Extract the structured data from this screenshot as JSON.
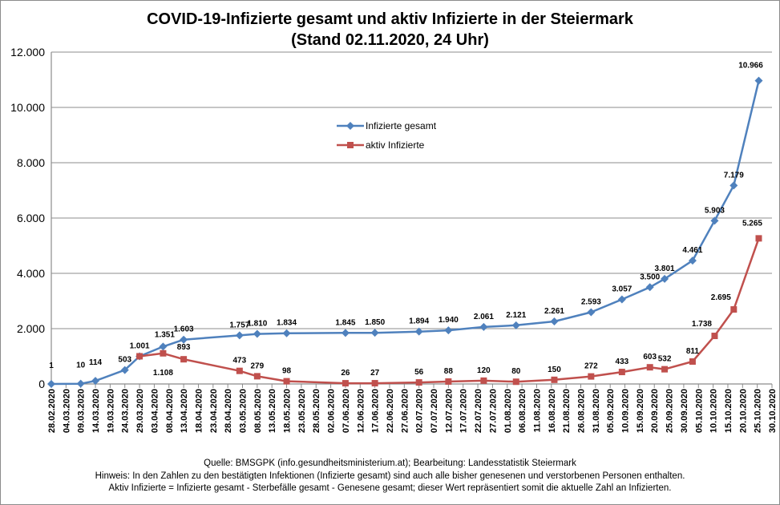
{
  "title_line1": "COVID-19-Infizierte gesamt und aktiv Infizierte in der Steiermark",
  "title_line2": "(Stand 02.11.2020, 24 Uhr)",
  "footnotes": [
    "Quelle: BMSGPK (info.gesundheitsministerium.at); Bearbeitung: Landesstatistik Steiermark",
    "Hinweis: In den Zahlen zu den bestätigten Infektionen (Infizierte gesamt) sind auch alle bisher genesenen und verstorbenen Personen enthalten.",
    "Aktiv Infizierte = Infizierte gesamt - Sterbefälle gesamt - Genesene gesamt; dieser Wert repräsentiert somit die aktuelle Zahl an Infizierten."
  ],
  "colors": {
    "series1": "#4F81BD",
    "series2": "#C0504D",
    "grid": "#8c8c8c"
  },
  "chart_data": {
    "type": "line",
    "ylim": [
      0,
      12000
    ],
    "yticks": [
      "0",
      "2.000",
      "4.000",
      "6.000",
      "8.000",
      "10.000",
      "12.000"
    ],
    "ytick_values": [
      0,
      2000,
      4000,
      6000,
      8000,
      10000,
      12000
    ],
    "categories": [
      "28.02.2020",
      "04.03.2020",
      "09.03.2020",
      "14.03.2020",
      "19.03.2020",
      "24.03.2020",
      "29.03.2020",
      "03.04.2020",
      "08.04.2020",
      "13.04.2020",
      "18.04.2020",
      "23.04.2020",
      "28.04.2020",
      "03.05.2020",
      "08.05.2020",
      "13.05.2020",
      "18.05.2020",
      "23.05.2020",
      "28.05.2020",
      "02.06.2020",
      "07.06.2020",
      "12.06.2020",
      "17.06.2020",
      "22.06.2020",
      "27.06.2020",
      "02.07.2020",
      "07.07.2020",
      "12.07.2020",
      "17.07.2020",
      "22.07.2020",
      "27.07.2020",
      "01.08.2020",
      "06.08.2020",
      "11.08.2020",
      "16.08.2020",
      "21.08.2020",
      "26.08.2020",
      "31.08.2020",
      "05.09.2020",
      "10.09.2020",
      "15.09.2020",
      "20.09.2020",
      "25.09.2020",
      "30.09.2020",
      "05.10.2020",
      "10.10.2020",
      "15.10.2020",
      "20.10.2020",
      "25.10.2020",
      "30.10.2020"
    ],
    "series": [
      {
        "name": "Infizierte gesamt",
        "points": [
          [
            0,
            1
          ],
          [
            2,
            10
          ],
          [
            3,
            114
          ],
          [
            5,
            503
          ],
          [
            6,
            1001
          ],
          [
            7.6,
            1351
          ],
          [
            9,
            1603
          ],
          [
            12.8,
            1757
          ],
          [
            14,
            1810
          ],
          [
            16,
            1834
          ],
          [
            20,
            1845
          ],
          [
            22,
            1850
          ],
          [
            25,
            1894
          ],
          [
            27,
            1940
          ],
          [
            29.4,
            2061
          ],
          [
            31.6,
            2121
          ],
          [
            34.2,
            2261
          ],
          [
            36.7,
            2593
          ],
          [
            38.8,
            3057
          ],
          [
            40.7,
            3500
          ],
          [
            41.7,
            3801
          ],
          [
            43.6,
            4461
          ],
          [
            45.1,
            5903
          ],
          [
            46.4,
            7179
          ],
          [
            48.1,
            10966
          ]
        ],
        "labels": [
          "1",
          "10",
          "114",
          "503",
          "1.001",
          "1.351",
          "1.603",
          "1.757",
          "1.810",
          "1.834",
          "1.845",
          "1.850",
          "1.894",
          "1.940",
          "2.061",
          "2.121",
          "2.261",
          "2.593",
          "3.057",
          "3.500",
          "3.801",
          "4.461",
          "5.903",
          "7.179",
          "10.966"
        ]
      },
      {
        "name": "aktiv Infizierte",
        "points": [
          [
            6,
            1001
          ],
          [
            7.6,
            1108
          ],
          [
            9,
            893
          ],
          [
            12.8,
            473
          ],
          [
            14,
            279
          ],
          [
            16,
            98
          ],
          [
            20,
            26
          ],
          [
            22,
            27
          ],
          [
            25,
            56
          ],
          [
            27,
            88
          ],
          [
            29.4,
            120
          ],
          [
            31.6,
            80
          ],
          [
            34.2,
            150
          ],
          [
            36.7,
            272
          ],
          [
            38.8,
            433
          ],
          [
            40.7,
            603
          ],
          [
            41.7,
            532
          ],
          [
            43.6,
            811
          ],
          [
            45.1,
            1738
          ],
          [
            46.4,
            2695
          ],
          [
            48.1,
            5265
          ]
        ],
        "labels": [
          "",
          "1.108",
          "893",
          "473",
          "279",
          "98",
          "26",
          "27",
          "56",
          "88",
          "120",
          "80",
          "150",
          "272",
          "433",
          "603",
          "532",
          "811",
          "1.738",
          "2.695",
          "5.265"
        ]
      }
    ],
    "legend": [
      "Infizierte gesamt",
      "aktiv Infizierte"
    ],
    "legend_position": "upper-center"
  }
}
